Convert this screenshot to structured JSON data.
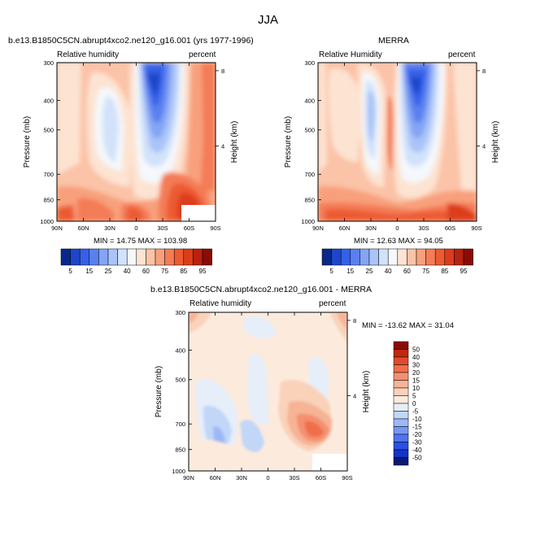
{
  "figure_title": "JJA",
  "colors": {
    "abs_scale": [
      "#08298a",
      "#1e46c8",
      "#3560e8",
      "#5a80f0",
      "#84a4f4",
      "#aac4f8",
      "#d2e2fa",
      "#f5f8fc",
      "#fde3d2",
      "#fbc3a8",
      "#f8a07c",
      "#f47c56",
      "#ec5a32",
      "#dc3c1a",
      "#b8220e",
      "#8a0c06"
    ],
    "diff_scale": [
      "#081a78",
      "#1434c8",
      "#2a50e4",
      "#4e74f0",
      "#7698f4",
      "#9cb8f6",
      "#c2d6f8",
      "#e6eefa",
      "#fcebdd",
      "#f9d2b9",
      "#f7b396",
      "#f49070",
      "#ef6e4c",
      "#e04a2a",
      "#c0280e",
      "#8c0a04"
    ]
  },
  "panels": {
    "model": {
      "title": "b.e13.B1850C5CN.abrupt4xco2.ne120_g16.001 (yrs 1977-1996)",
      "left_label": "Relative humidity",
      "right_label": "percent",
      "min_max": "MIN = 14.75  MAX = 103.98"
    },
    "obs": {
      "title": "MERRA",
      "left_label": "Relative Humidity",
      "right_label": "percent",
      "min_max": "MIN = 12.63  MAX = 94.05"
    },
    "diff": {
      "title": "b.e13.B1850C5CN.abrupt4xco2.ne120_g16.001 - MERRA",
      "left_label": "Relative humidity",
      "right_label": "percent",
      "min_max": "MIN = -13.62  MAX = 31.04"
    }
  },
  "chart_data": [
    {
      "type": "heatmap",
      "id": "model",
      "title": "b.e13.B1850C5CN.abrupt4xco2.ne120_g16.001 (yrs 1977-1996)",
      "xlabel": "",
      "ylabel": "Pressure (mb)",
      "y2label": "Height (km)",
      "x_ticks": [
        "90N",
        "60N",
        "30N",
        "0",
        "30S",
        "60S",
        "90S"
      ],
      "x_range": [
        90,
        -90
      ],
      "y_ticks": [
        "300",
        "400",
        "500",
        "700",
        "850",
        "1000"
      ],
      "y_range": [
        300,
        1000
      ],
      "y2_ticks": [
        "8",
        "4"
      ],
      "colorbar_labels": [
        "5",
        "15",
        "25",
        "40",
        "60",
        "75",
        "85",
        "95"
      ],
      "min": 14.75,
      "max": 103.98
    },
    {
      "type": "heatmap",
      "id": "obs",
      "title": "MERRA",
      "xlabel": "",
      "ylabel": "Pressure (mb)",
      "y2label": "Height (km)",
      "x_ticks": [
        "90N",
        "60N",
        "30N",
        "0",
        "30S",
        "60S",
        "90S"
      ],
      "x_range": [
        90,
        -90
      ],
      "y_ticks": [
        "300",
        "400",
        "500",
        "700",
        "850",
        "1000"
      ],
      "y_range": [
        300,
        1000
      ],
      "y2_ticks": [
        "8",
        "4"
      ],
      "colorbar_labels": [
        "5",
        "15",
        "25",
        "40",
        "60",
        "75",
        "85",
        "95"
      ],
      "min": 12.63,
      "max": 94.05
    },
    {
      "type": "heatmap",
      "id": "diff",
      "title": "b.e13.B1850C5CN.abrupt4xco2.ne120_g16.001 - MERRA",
      "xlabel": "",
      "ylabel": "Pressure (mb)",
      "y2label": "Height (km)",
      "x_ticks": [
        "90N",
        "60N",
        "30N",
        "0",
        "30S",
        "60S",
        "90S"
      ],
      "x_range": [
        90,
        -90
      ],
      "y_ticks": [
        "300",
        "400",
        "500",
        "700",
        "850",
        "1000"
      ],
      "y_range": [
        300,
        1000
      ],
      "y2_ticks": [
        "8",
        "4"
      ],
      "colorbar_labels": [
        "50",
        "40",
        "30",
        "20",
        "15",
        "10",
        "5",
        "0",
        "-5",
        "-10",
        "-15",
        "-20",
        "-30",
        "-40",
        "-50"
      ],
      "min": -13.62,
      "max": 31.04
    }
  ]
}
